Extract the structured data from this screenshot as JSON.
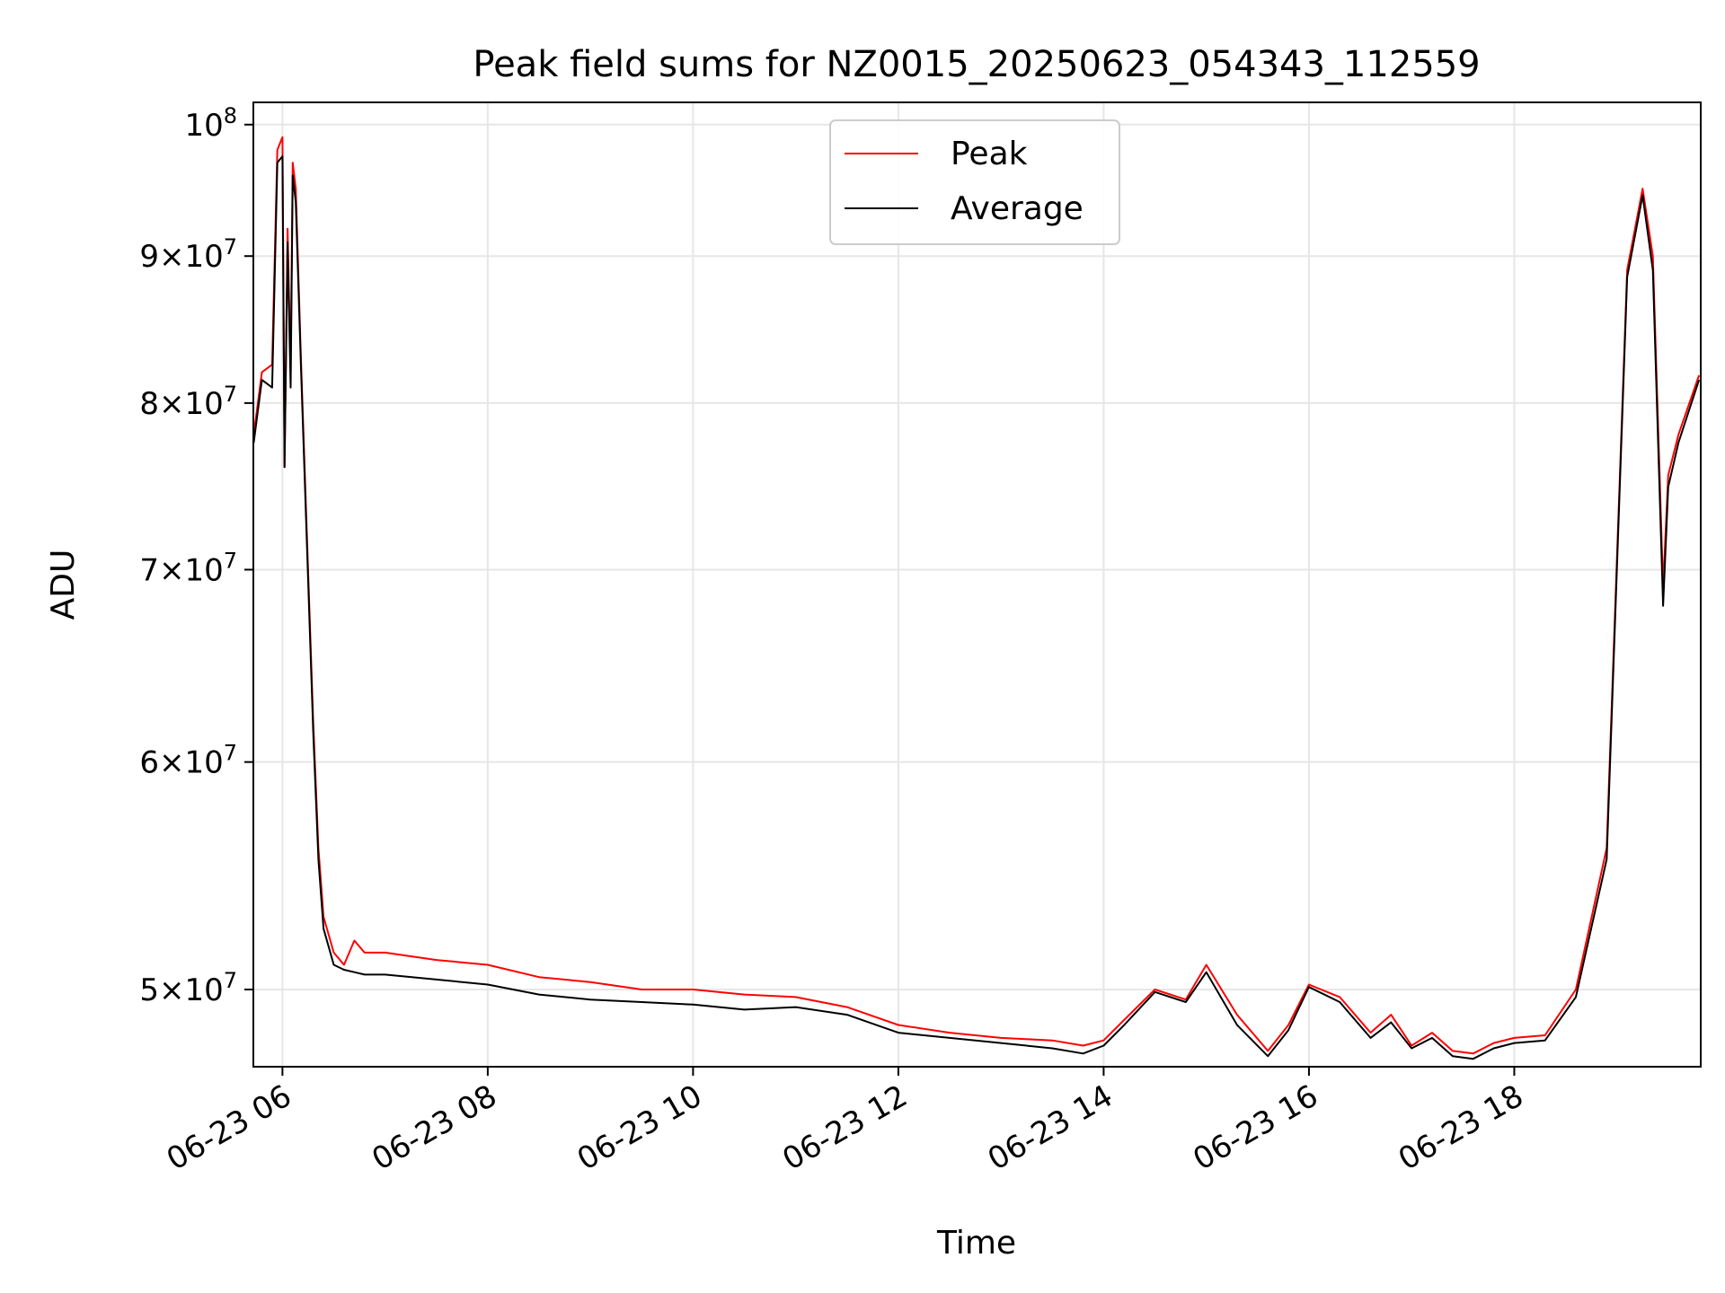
{
  "chart_data": {
    "type": "line",
    "title": "Peak field sums for NZ0015_20250623_054343_112559",
    "xlabel": "Time",
    "ylabel": "ADU",
    "y_scale": "log",
    "ylim": [
      47000000,
      101800000
    ],
    "xlim": [
      "06-23 05:43",
      "06-23 19:49"
    ],
    "grid": true,
    "legend": "top-center",
    "x_ticks": [
      "06-23 06",
      "06-23 08",
      "06-23 10",
      "06-23 12",
      "06-23 14",
      "06-23 16",
      "06-23 18"
    ],
    "y_ticks": [
      {
        "value": 50000000,
        "mantissa": "5",
        "exp": "7"
      },
      {
        "value": 60000000,
        "mantissa": "6",
        "exp": "7"
      },
      {
        "value": 70000000,
        "mantissa": "7",
        "exp": "7"
      },
      {
        "value": 80000000,
        "mantissa": "8",
        "exp": "7"
      },
      {
        "value": 90000000,
        "mantissa": "9",
        "exp": "7"
      },
      {
        "value": 100000000,
        "mantissa": "",
        "exp": "8"
      }
    ],
    "x_hours": [
      5.72,
      5.8,
      5.9,
      5.95,
      6.0,
      6.02,
      6.05,
      6.08,
      6.1,
      6.13,
      6.18,
      6.25,
      6.3,
      6.35,
      6.4,
      6.5,
      6.6,
      6.7,
      6.8,
      7.0,
      7.5,
      8.0,
      8.5,
      9.0,
      9.5,
      10.0,
      10.5,
      11.0,
      11.5,
      12.0,
      12.5,
      13.0,
      13.5,
      13.8,
      14.0,
      14.2,
      14.5,
      14.8,
      15.0,
      15.3,
      15.6,
      15.8,
      16.0,
      16.3,
      16.6,
      16.8,
      17.0,
      17.2,
      17.4,
      17.6,
      17.8,
      18.0,
      18.3,
      18.6,
      18.9,
      19.1,
      19.25,
      19.35,
      19.45,
      19.5,
      19.6,
      19.8
    ],
    "series": [
      {
        "name": "Peak",
        "color": "#ff0000",
        "values": [
          78000000,
          82000000,
          82500000,
          98000000,
          99000000,
          76000000,
          92000000,
          82000000,
          97000000,
          95000000,
          83000000,
          70000000,
          62000000,
          56000000,
          53000000,
          51500000,
          51000000,
          52000000,
          51500000,
          51500000,
          51200000,
          51000000,
          50500000,
          50300000,
          50000000,
          50000000,
          49800000,
          49700000,
          49300000,
          48600000,
          48300000,
          48100000,
          48000000,
          47800000,
          48000000,
          48800000,
          50000000,
          49600000,
          51000000,
          49000000,
          47600000,
          48600000,
          50200000,
          49700000,
          48300000,
          49000000,
          47800000,
          48300000,
          47600000,
          47500000,
          47900000,
          48100000,
          48200000,
          50000000,
          56000000,
          89000000,
          95000000,
          90000000,
          69000000,
          75500000,
          78000000,
          81800000
        ]
      },
      {
        "name": "Average",
        "color": "#000000",
        "values": [
          77500000,
          81500000,
          81000000,
          97000000,
          97500000,
          76000000,
          91000000,
          81000000,
          96000000,
          94000000,
          82500000,
          69500000,
          61500000,
          55500000,
          52500000,
          51000000,
          50800000,
          50700000,
          50600000,
          50600000,
          50400000,
          50200000,
          49800000,
          49600000,
          49500000,
          49400000,
          49200000,
          49300000,
          49000000,
          48300000,
          48100000,
          47900000,
          47700000,
          47500000,
          47800000,
          48600000,
          49900000,
          49500000,
          50700000,
          48600000,
          47400000,
          48400000,
          50100000,
          49500000,
          48100000,
          48700000,
          47700000,
          48100000,
          47400000,
          47300000,
          47700000,
          47900000,
          48000000,
          49700000,
          55500000,
          88500000,
          94500000,
          89000000,
          68000000,
          74800000,
          77500000,
          81500000
        ]
      }
    ]
  }
}
